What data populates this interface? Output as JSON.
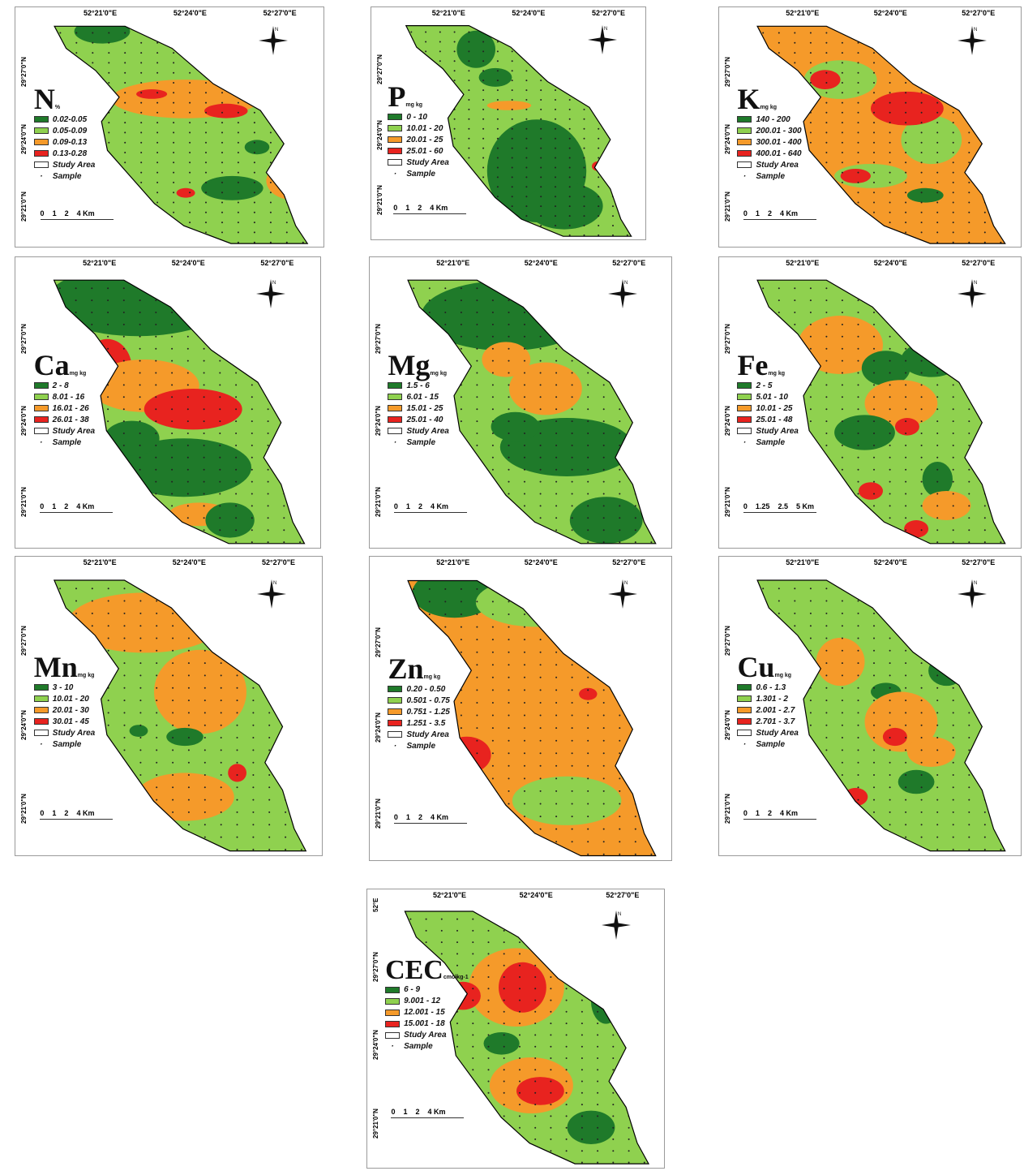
{
  "colors": {
    "dark_green": "#1f7a2a",
    "light_green": "#8fd14f",
    "orange": "#f59a2a",
    "red": "#e8231f",
    "outline": "#000000"
  },
  "panels": [
    {
      "id": "N",
      "title": "N",
      "unit": "%",
      "lon": [
        "52°21'0\"E",
        "52°24'0\"E",
        "52°27'0\"E"
      ],
      "lat": [
        "29°27'0\"N",
        "29°24'0\"N",
        "29°21'0\"N"
      ],
      "legend": [
        "0.02-0.05",
        "0.05-0.09",
        "0.09-0.13",
        "0.13-0.28"
      ],
      "study": "Study Area",
      "sample": "Sample",
      "scale": [
        "0",
        "1",
        "2",
        "4 Km"
      ]
    },
    {
      "id": "P",
      "title": "P",
      "unit": "mg kg",
      "lon": [
        "52°21'0\"E",
        "52°24'0\"E",
        "52°27'0\"E"
      ],
      "lat": [
        "29°27'0\"N",
        "29°24'0\"N",
        "29°21'0\"N"
      ],
      "legend": [
        "0 - 10",
        "10.01 - 20",
        "20.01 - 25",
        "25.01 - 60"
      ],
      "study": "Study Area",
      "sample": "Sample",
      "scale": [
        "0",
        "1",
        "2",
        "4 Km"
      ]
    },
    {
      "id": "K",
      "title": "K",
      "unit": "mg kg",
      "lon": [
        "52°21'0\"E",
        "52°24'0\"E",
        "52°27'0\"E"
      ],
      "lat": [
        "29°27'0\"N",
        "29°24'0\"N",
        "29°21'0\"N"
      ],
      "legend": [
        "140 - 200",
        "200.01 - 300",
        "300.01 - 400",
        "400.01 - 640"
      ],
      "study": "Study Area",
      "sample": "Sample",
      "scale": [
        "0",
        "1",
        "2",
        "4 Km"
      ]
    },
    {
      "id": "Ca",
      "title": "Ca",
      "unit": "mg kg",
      "lon": [
        "52°21'0\"E",
        "52°24'0\"E",
        "52°27'0\"E"
      ],
      "lat": [
        "29°27'0\"N",
        "29°24'0\"N",
        "29°21'0\"N"
      ],
      "legend": [
        "2 - 8",
        "8.01 - 16",
        "16.01 - 26",
        "26.01 - 38"
      ],
      "study": "Study Area",
      "sample": "Sample",
      "scale": [
        "0",
        "1",
        "2",
        "4 Km"
      ]
    },
    {
      "id": "Mg",
      "title": "Mg",
      "unit": "mg kg",
      "lon": [
        "52°21'0\"E",
        "52°24'0\"E",
        "52°27'0\"E"
      ],
      "lat": [
        "29°27'0\"N",
        "29°24'0\"N",
        "29°21'0\"N"
      ],
      "legend": [
        "1.5 - 6",
        "6.01 - 15",
        "15.01 - 25",
        "25.01 - 40"
      ],
      "study": "Study Area",
      "sample": "Sample",
      "scale": [
        "0",
        "1",
        "2",
        "4 Km"
      ]
    },
    {
      "id": "Fe",
      "title": "Fe",
      "unit": "mg kg",
      "lon": [
        "52°21'0\"E",
        "52°24'0\"E",
        "52°27'0\"E"
      ],
      "lat": [
        "29°27'0\"N",
        "29°24'0\"N",
        "29°21'0\"N"
      ],
      "legend": [
        "2 - 5",
        "5.01 - 10",
        "10.01 - 25",
        "25.01 - 48"
      ],
      "study": "Study Area",
      "sample": "Sample",
      "scale": [
        "0",
        "1.25",
        "2.5",
        "5 Km"
      ]
    },
    {
      "id": "Mn",
      "title": "Mn",
      "unit": "mg kg",
      "lon": [
        "52°21'0\"E",
        "52°24'0\"E",
        "52°27'0\"E"
      ],
      "lat": [
        "29°27'0\"N",
        "29°24'0\"N",
        "29°21'0\"N"
      ],
      "legend": [
        "3 - 10",
        "10.01 - 20",
        "20.01 - 30",
        "30.01 - 45"
      ],
      "study": "Study Area",
      "sample": "Sample",
      "scale": [
        "0",
        "1",
        "2",
        "4 Km"
      ]
    },
    {
      "id": "Zn",
      "title": "Zn",
      "unit": "mg kg",
      "lon": [
        "52°21'0\"E",
        "52°24'0\"E",
        "52°27'0\"E"
      ],
      "lat": [
        "29°27'0\"N",
        "29°24'0\"N",
        "29°21'0\"N"
      ],
      "legend": [
        "0.20 - 0.50",
        "0.501 - 0.75",
        "0.751 - 1.25",
        "1.251 - 3.5"
      ],
      "study": "Study Area",
      "sample": "Sample",
      "scale": [
        "0",
        "1",
        "2",
        "4 Km"
      ]
    },
    {
      "id": "Cu",
      "title": "Cu",
      "unit": "mg kg",
      "lon": [
        "52°21'0\"E",
        "52°24'0\"E",
        "52°27'0\"E"
      ],
      "lat": [
        "29°27'0\"N",
        "29°24'0\"N",
        "29°21'0\"N"
      ],
      "legend": [
        "0.6 - 1.3",
        "1.301 - 2",
        "2.001 - 2.7",
        "2.701 - 3.7"
      ],
      "study": "Study Area",
      "sample": "Sample",
      "scale": [
        "0",
        "1",
        "2",
        "4 Km"
      ]
    },
    {
      "id": "CEC",
      "title": "CEC",
      "unit": "cmolkg-1",
      "lon": [
        "52°21'0\"E",
        "52°24'0\"E",
        "52°27'0\"E"
      ],
      "lat": [
        "29°27'0\"N",
        "29°24'0\"N",
        "29°21'0\"N"
      ],
      "legend": [
        "6 - 9",
        "9.001 - 12",
        "12.001 - 15",
        "15.001 - 18"
      ],
      "study": "Study Area",
      "sample": "Sample",
      "scale": [
        "0",
        "1",
        "2",
        "4 Km"
      ],
      "extra_lat": "52°E"
    }
  ]
}
